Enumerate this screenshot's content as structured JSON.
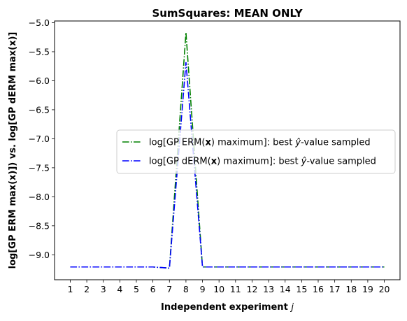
{
  "chart_data": {
    "type": "line",
    "title": "SumSquares: MEAN ONLY",
    "xlabel_text": "Independent experiment ",
    "xlabel_var": "j",
    "ylabel": "log[GP ERM max(x)]) vs. log[GP dERM max(x)]",
    "x": [
      1,
      2,
      3,
      4,
      5,
      6,
      7,
      8,
      9,
      10,
      11,
      12,
      13,
      14,
      15,
      16,
      17,
      18,
      19,
      20
    ],
    "xlim": [
      0.05,
      20.95
    ],
    "ylim": [
      -9.43,
      -4.97
    ],
    "yticks": [
      -5.0,
      -5.5,
      -6.0,
      -6.5,
      -7.0,
      -7.5,
      -8.0,
      -8.5,
      -9.0
    ],
    "ytick_labels": [
      "−5.0",
      "−5.5",
      "−6.0",
      "−6.5",
      "−7.0",
      "−7.5",
      "−8.0",
      "−8.5",
      "−9.0"
    ],
    "series": [
      {
        "legend_parts": [
          "log[GP ERM(",
          "x",
          ") maximum]: best ",
          "ŷ",
          "-value sampled"
        ],
        "color": "#008000",
        "linestyle": "dashdot",
        "values": [
          -9.21,
          -9.21,
          -9.21,
          -9.21,
          -9.21,
          -9.21,
          -9.23,
          -5.17,
          -9.21,
          -9.21,
          -9.21,
          -9.21,
          -9.21,
          -9.21,
          -9.21,
          -9.21,
          -9.21,
          -9.21,
          -9.21,
          -9.21
        ]
      },
      {
        "legend_parts": [
          "log[GP dERM(",
          "x",
          ") maximum]: best ",
          "ŷ",
          "-value sampled"
        ],
        "color": "#0000ff",
        "linestyle": "dashdot",
        "values": [
          -9.21,
          -9.21,
          -9.21,
          -9.21,
          -9.21,
          -9.21,
          -9.23,
          -5.68,
          -9.21,
          -9.21,
          -9.21,
          -9.21,
          -9.21,
          -9.21,
          -9.21,
          -9.21,
          -9.21,
          -9.21,
          -9.21,
          -9.21
        ]
      }
    ],
    "legend_position": "center-right",
    "grid": false
  }
}
